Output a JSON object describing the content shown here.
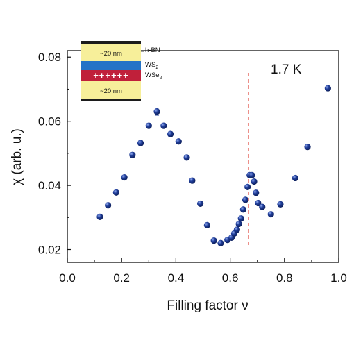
{
  "chart_data": {
    "type": "scatter",
    "xlabel": "Filling factor ν",
    "ylabel": "χ (arb. u.)",
    "xlim": [
      0.0,
      1.0
    ],
    "ylim": [
      0.016,
      0.082
    ],
    "x_ticks": [
      "0.0",
      "0.2",
      "0.4",
      "0.6",
      "0.8",
      "1.0"
    ],
    "x_tick_values": [
      0.0,
      0.2,
      0.4,
      0.6,
      0.8,
      1.0
    ],
    "y_ticks": [
      "0.02",
      "0.04",
      "0.06",
      "0.08"
    ],
    "y_tick_values": [
      0.02,
      0.04,
      0.06,
      0.08
    ],
    "grid": false,
    "marker_color": "#1f3d99",
    "series": [
      {
        "points": [
          {
            "x": 0.12,
            "y": 0.0302
          },
          {
            "x": 0.15,
            "y": 0.0338
          },
          {
            "x": 0.18,
            "y": 0.0378
          },
          {
            "x": 0.21,
            "y": 0.0425
          },
          {
            "x": 0.24,
            "y": 0.0495
          },
          {
            "x": 0.27,
            "y": 0.0532,
            "err": 0.0009
          },
          {
            "x": 0.3,
            "y": 0.0586,
            "err": 0.0007
          },
          {
            "x": 0.33,
            "y": 0.063,
            "err": 0.0011
          },
          {
            "x": 0.355,
            "y": 0.0586,
            "err": 0.0007
          },
          {
            "x": 0.38,
            "y": 0.056,
            "err": 0.0007
          },
          {
            "x": 0.41,
            "y": 0.0537
          },
          {
            "x": 0.44,
            "y": 0.0487
          },
          {
            "x": 0.46,
            "y": 0.0415
          },
          {
            "x": 0.49,
            "y": 0.0343
          },
          {
            "x": 0.515,
            "y": 0.0276
          },
          {
            "x": 0.54,
            "y": 0.0228
          },
          {
            "x": 0.565,
            "y": 0.022
          },
          {
            "x": 0.59,
            "y": 0.023
          },
          {
            "x": 0.605,
            "y": 0.0237
          },
          {
            "x": 0.615,
            "y": 0.025
          },
          {
            "x": 0.625,
            "y": 0.0262
          },
          {
            "x": 0.632,
            "y": 0.028
          },
          {
            "x": 0.64,
            "y": 0.0297
          },
          {
            "x": 0.648,
            "y": 0.0325
          },
          {
            "x": 0.656,
            "y": 0.0355
          },
          {
            "x": 0.664,
            "y": 0.0395
          },
          {
            "x": 0.672,
            "y": 0.0432
          },
          {
            "x": 0.68,
            "y": 0.0432
          },
          {
            "x": 0.688,
            "y": 0.0412
          },
          {
            "x": 0.695,
            "y": 0.0377
          },
          {
            "x": 0.703,
            "y": 0.0345
          },
          {
            "x": 0.718,
            "y": 0.0333
          },
          {
            "x": 0.75,
            "y": 0.031
          },
          {
            "x": 0.785,
            "y": 0.0341
          },
          {
            "x": 0.84,
            "y": 0.0423
          },
          {
            "x": 0.885,
            "y": 0.052
          },
          {
            "x": 0.96,
            "y": 0.0703
          }
        ]
      }
    ],
    "vline": {
      "x": 0.667,
      "color": "#e0453a"
    },
    "annotation": "1.7 K"
  },
  "inset": {
    "top_thickness": "~20 nm",
    "bottom_thickness": "~20 nm",
    "hbn_label": "h-BN",
    "ws2_label": "WS",
    "ws2_sub": "2",
    "wse2_label": "WSe",
    "wse2_sub": "2",
    "charges": "++++++",
    "colors": {
      "hbn": "#f7ef9a",
      "ws2": "#2573c6",
      "wse2": "#c0203a",
      "gate": "#1c1c1c"
    }
  }
}
